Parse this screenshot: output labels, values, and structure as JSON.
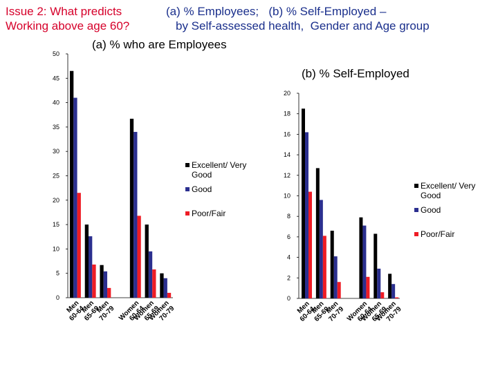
{
  "header": {
    "left_line1": "Issue 2: What predicts",
    "left_line2": "Working above age 60?",
    "right_line1": "(a) % Employees;   (b) % Self-Employed –",
    "right_line2": "by Self-assessed health,  Gender and Age group"
  },
  "colors": {
    "excellent": "#000000",
    "good": "#2b2f8f",
    "poor": "#ee1c25"
  },
  "chart_data": [
    {
      "type": "bar",
      "title": "(a)  % who are Employees",
      "categories": [
        "Men 60-64",
        "Men 65-69",
        "Men 70-79",
        "",
        "Women 60-64",
        "Women 65-69",
        "Women 70-79"
      ],
      "category_lines": [
        [
          "Men",
          "60-64"
        ],
        [
          "Men",
          "65-69"
        ],
        [
          "Men",
          "70-79"
        ],
        [
          "",
          ""
        ],
        [
          "Women",
          "60-64"
        ],
        [
          "Women",
          "65-69"
        ],
        [
          "Women",
          "70-79"
        ]
      ],
      "ylim": [
        0,
        50
      ],
      "yticks": [
        0,
        5,
        10,
        15,
        20,
        25,
        30,
        35,
        40,
        45,
        50
      ],
      "series": [
        {
          "name": "Excellent/ Very Good",
          "legend_lines": [
            "Excellent/ Very",
            "Good"
          ],
          "values": [
            46.5,
            15,
            6.7,
            null,
            36.7,
            15,
            5
          ]
        },
        {
          "name": "Good",
          "legend_lines": [
            "Good",
            ""
          ],
          "values": [
            41,
            12.6,
            5.4,
            null,
            34,
            9.5,
            4
          ]
        },
        {
          "name": "Poor/Fair",
          "legend_lines": [
            "Poor/Fair",
            ""
          ],
          "values": [
            21.5,
            6.8,
            2,
            null,
            16.8,
            5.8,
            1
          ]
        }
      ]
    },
    {
      "type": "bar",
      "title": "(b) %  Self-Employed",
      "categories": [
        "Men 60-64",
        "Men 65-69",
        "Men 70-79",
        "",
        "Women 60-64",
        "Women 65-69",
        "Women 70-79"
      ],
      "category_lines": [
        [
          "Men",
          "60-64"
        ],
        [
          "Men",
          "65-69"
        ],
        [
          "Men",
          "70-79"
        ],
        [
          "",
          ""
        ],
        [
          "Women",
          "60-64"
        ],
        [
          "Women",
          "65-69"
        ],
        [
          "Women",
          "70-79"
        ]
      ],
      "ylim": [
        0,
        20
      ],
      "yticks": [
        0,
        2,
        4,
        6,
        8,
        10,
        12,
        14,
        16,
        18,
        20
      ],
      "series": [
        {
          "name": "Excellent/ Very Good",
          "legend_lines": [
            "Excellent/ Very",
            "Good"
          ],
          "values": [
            18.5,
            12.7,
            6.6,
            null,
            7.9,
            6.3,
            2.4
          ]
        },
        {
          "name": "Good",
          "legend_lines": [
            "Good",
            ""
          ],
          "values": [
            16.2,
            9.6,
            4.1,
            null,
            7.1,
            2.9,
            1.4
          ]
        },
        {
          "name": "Poor/Fair",
          "legend_lines": [
            "Poor/Fair",
            ""
          ],
          "values": [
            10.4,
            6.1,
            1.6,
            null,
            2.1,
            0.6,
            0.1
          ]
        }
      ]
    }
  ]
}
